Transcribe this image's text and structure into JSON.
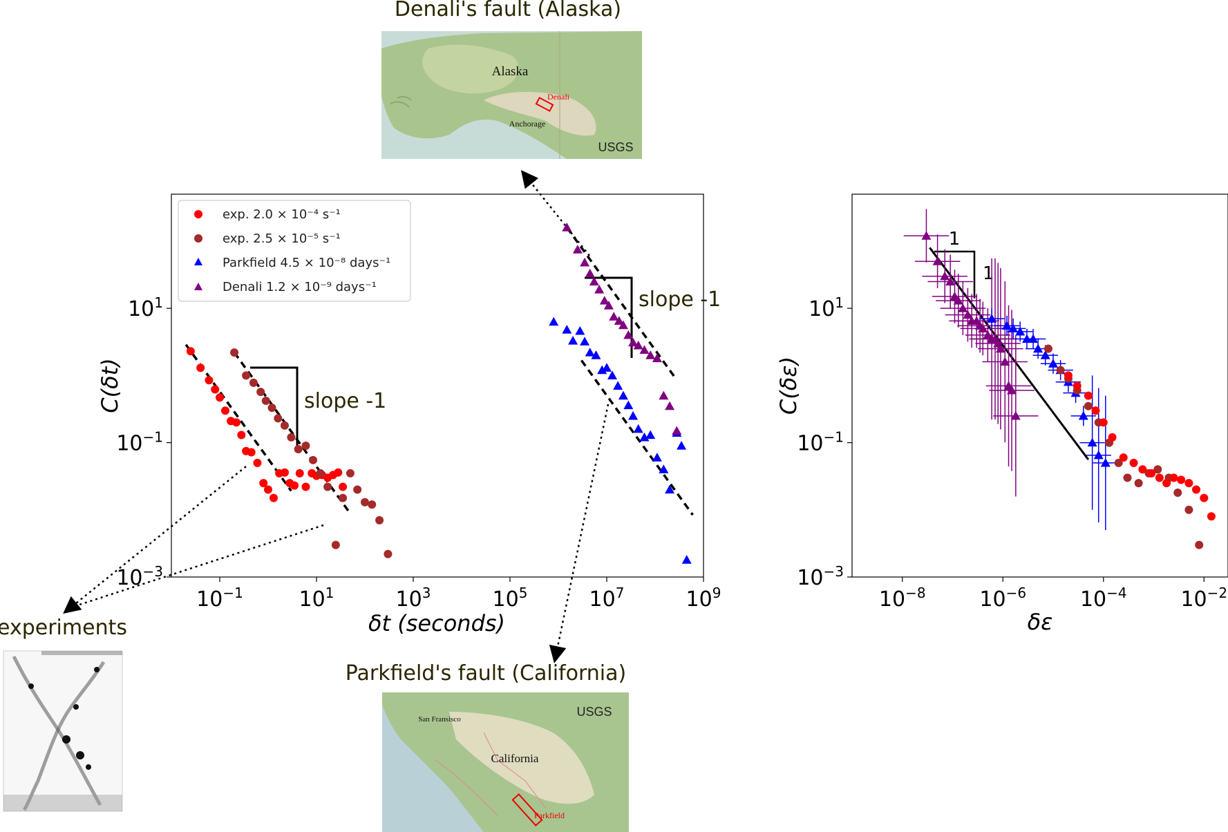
{
  "annotations": {
    "denali_title": "Denali's fault (Alaska)",
    "parkfield_title": "Parkfield's fault (California)",
    "experiments_title": "experiments",
    "slope_left": "slope -1",
    "slope_right": "slope -1",
    "triangle_run": "1",
    "triangle_rise": "1"
  },
  "maps": {
    "alaska": {
      "region": "Alaska",
      "fault": "Denali",
      "city": "Anchorage",
      "credit": "USGS"
    },
    "california": {
      "region": "California",
      "fault": "Parkfield",
      "city": "San Fransisco",
      "credit": "USGS"
    }
  },
  "colors": {
    "exp_fast": "#ff0000",
    "exp_slow": "#a52a2a",
    "parkfield": "#0000ff",
    "denali": "#800080",
    "annotation_text": "#2b2600"
  },
  "chart_data": [
    {
      "type": "scatter",
      "xlabel": "δt (seconds)",
      "ylabel": "C(δt)",
      "xscale": "log",
      "yscale": "log",
      "xlim": [
        0.01,
        1000000000
      ],
      "ylim": [
        0.001,
        500
      ],
      "xticks": [
        "10^-1",
        "10^1",
        "10^3",
        "10^5",
        "10^7",
        "10^9"
      ],
      "yticks": [
        "10^-3",
        "10^-1",
        "10^1"
      ],
      "legend_position": "upper-left",
      "series": [
        {
          "name": "exp. 2.0 × 10⁻⁴ s⁻¹",
          "marker": "circle",
          "color": "#ff0000",
          "x": [
            0.025,
            0.04,
            0.06,
            0.08,
            0.1,
            0.13,
            0.17,
            0.22,
            0.28,
            0.35,
            0.45,
            0.6,
            0.8,
            1.0,
            1.3,
            1.7,
            2.2,
            2.8,
            3.5,
            4.5,
            6,
            8,
            10,
            13,
            17,
            22,
            28,
            35
          ],
          "y": [
            2.3,
            1.3,
            0.85,
            0.62,
            0.47,
            0.3,
            0.21,
            0.2,
            0.13,
            0.075,
            0.072,
            0.05,
            0.025,
            0.02,
            0.015,
            0.035,
            0.036,
            0.025,
            0.023,
            0.035,
            0.022,
            0.035,
            0.032,
            0.033,
            0.03,
            0.033,
            0.036,
            0.022
          ]
        },
        {
          "name": "exp. 2.5 × 10⁻⁵ s⁻¹",
          "marker": "circle",
          "color": "#a52a2a",
          "x": [
            0.2,
            0.35,
            0.5,
            0.7,
            0.9,
            1.2,
            1.6,
            2.2,
            3.0,
            4.2,
            6,
            8.5,
            12,
            17,
            25,
            35,
            50,
            70,
            100,
            140,
            200,
            300
          ],
          "y": [
            2.2,
            1.0,
            0.78,
            0.57,
            0.42,
            0.33,
            0.23,
            0.18,
            0.12,
            0.08,
            0.09,
            0.055,
            0.035,
            0.022,
            0.003,
            0.015,
            0.035,
            0.02,
            0.013,
            0.012,
            0.007,
            0.0022
          ]
        },
        {
          "name": "Parkfield 4.5 × 10⁻⁸ days⁻¹",
          "marker": "triangle",
          "color": "#0000ff",
          "x": [
            800000,
            1500000,
            2000000,
            2800000,
            3500000,
            4500000,
            6000000,
            8000000,
            10000000,
            13000000,
            17000000,
            22000000,
            28000000,
            35000000,
            45000000,
            60000000,
            80000000,
            110000000,
            150000000,
            200000000,
            280000000,
            350000000,
            450000000
          ],
          "y": [
            6.3,
            4.8,
            3.3,
            4.6,
            3.2,
            2.2,
            2.0,
            1.2,
            1.3,
            1.0,
            0.7,
            0.5,
            0.36,
            0.25,
            0.16,
            0.12,
            0.13,
            0.06,
            0.04,
            0.02,
            0.14,
            0.09,
            0.0018
          ]
        },
        {
          "name": "Denali 1.2 × 10⁻⁹ days⁻¹",
          "marker": "triangle",
          "color": "#800080",
          "x": [
            1500000,
            2500000,
            3500000,
            4500000,
            5500000,
            7000000,
            9000000,
            11000000,
            14000000,
            18000000,
            22000000,
            28000000,
            35000000,
            45000000,
            60000000,
            80000000,
            110000000,
            150000000,
            200000000,
            280000000
          ],
          "y": [
            160,
            75,
            48,
            33,
            25,
            19,
            13,
            11,
            7.5,
            6.5,
            5.6,
            4.0,
            3.1,
            2.8,
            2.4,
            2.0,
            1.8,
            0.5,
            0.35,
            0.15
          ]
        }
      ],
      "reference_lines": [
        "dashed slope -1 fits for each series"
      ]
    },
    {
      "type": "scatter",
      "xlabel": "δε",
      "ylabel": "C(δε)",
      "xscale": "log",
      "yscale": "log",
      "xlim": [
        1e-09,
        0.03
      ],
      "ylim": [
        0.001,
        500
      ],
      "xticks": [
        "10^-8",
        "10^-6",
        "10^-4",
        "10^-2"
      ],
      "yticks": [
        "10^-3",
        "10^-1",
        "10^1"
      ],
      "error_bars": true,
      "series": [
        {
          "name": "Denali",
          "marker": "triangle",
          "color": "#800080",
          "x": [
            3e-08,
            5e-08,
            7e-08,
            9e-08,
            1.1e-07,
            1.3e-07,
            1.6e-07,
            2e-07,
            2.4e-07,
            3e-07,
            3.5e-07,
            4e-07,
            5e-07,
            6e-07,
            7e-07,
            8e-07,
            9e-07,
            1.1e-06,
            1.3e-06,
            1.5e-06,
            1.8e-06
          ],
          "y": [
            120,
            50,
            30,
            25,
            15,
            13,
            10,
            8,
            6.5,
            6.5,
            5.5,
            5,
            4,
            3.5,
            3.5,
            3,
            2.5,
            1.6,
            0.7,
            0.6,
            0.25
          ]
        },
        {
          "name": "Parkfield",
          "marker": "triangle",
          "color": "#0000ff",
          "x": [
            6e-07,
            1.2e-06,
            1.6e-06,
            2.2e-06,
            3e-06,
            4e-06,
            5e-06,
            7e-06,
            1e-05,
            1.4e-05,
            2e-05,
            2.8e-05,
            4e-05,
            6e-05,
            8e-05,
            0.00011
          ],
          "y": [
            7,
            5.5,
            5,
            4.5,
            3.5,
            3.5,
            2.5,
            2,
            1.5,
            1.2,
            0.8,
            0.55,
            0.25,
            0.1,
            0.065,
            0.05
          ]
        },
        {
          "name": "exp. 2.5 × 10⁻⁵",
          "marker": "circle",
          "color": "#a52a2a",
          "x": [
            8e-06,
            1.4e-05,
            2e-05,
            3e-05,
            5e-05,
            8e-05,
            0.00013,
            0.0002,
            0.0003,
            0.0005,
            0.0008,
            0.0012,
            0.002,
            0.003,
            0.005,
            0.008
          ],
          "y": [
            2.5,
            1.2,
            0.9,
            0.6,
            0.35,
            0.2,
            0.1,
            0.05,
            0.03,
            0.025,
            0.035,
            0.04,
            0.03,
            0.018,
            0.01,
            0.003
          ]
        },
        {
          "name": "exp. 2.0 × 10⁻⁴",
          "marker": "circle",
          "color": "#ff0000",
          "x": [
            2e-05,
            3e-05,
            5e-05,
            7e-05,
            0.0001,
            0.00015,
            0.00025,
            0.0004,
            0.0006,
            0.0009,
            0.0013,
            0.0018,
            0.0025,
            0.0035,
            0.005,
            0.007,
            0.01,
            0.014
          ],
          "y": [
            1.0,
            0.7,
            0.5,
            0.3,
            0.2,
            0.12,
            0.06,
            0.05,
            0.04,
            0.035,
            0.03,
            0.025,
            0.03,
            0.028,
            0.025,
            0.02,
            0.015,
            0.008
          ]
        }
      ],
      "reference_lines": [
        "solid slope -1 line with 1:1 triangle"
      ]
    }
  ]
}
